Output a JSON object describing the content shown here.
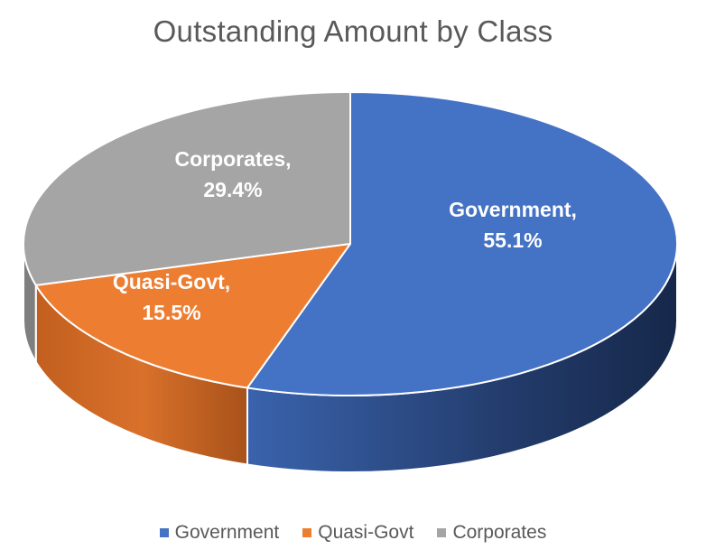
{
  "chart_data": {
    "type": "pie",
    "title": "Outstanding Amount by Class",
    "style": "3d",
    "categories": [
      "Government",
      "Quasi-Govt",
      "Corporates"
    ],
    "values": [
      55.1,
      15.5,
      29.4
    ],
    "value_labels": [
      "55.1%",
      "15.5%",
      "29.4%"
    ],
    "colors": [
      "#4472C4",
      "#ED7D31",
      "#A5A5A5"
    ],
    "legend_position": "bottom"
  }
}
